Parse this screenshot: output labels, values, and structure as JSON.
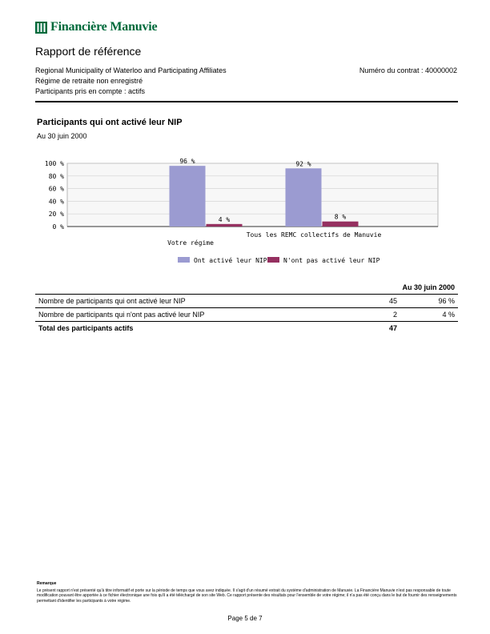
{
  "header": {
    "brand": "Financière Manuvie",
    "report_title": "Rapport de référence",
    "organization": "Regional Municipality of Waterloo and Participating Affiliates",
    "plan_type": "Régime de retraite non enregistré",
    "participants_scope": "Participants pris en compte : actifs",
    "contract_label": "Numéro du contrat : 40000002"
  },
  "section": {
    "title": "Participants qui ont activé leur NIP",
    "as_of": "Au 30 juin 2000"
  },
  "chart_data": {
    "type": "bar",
    "categories": [
      "Votre régime",
      "Tous les REMC collectifs de Manuvie"
    ],
    "series": [
      {
        "name": "Ont activé leur NIP",
        "values": [
          96,
          92
        ],
        "labels": [
          "96 %",
          "92 %"
        ],
        "color": "#9b9bd1"
      },
      {
        "name": "N'ont pas activé leur NIP",
        "values": [
          4,
          8
        ],
        "labels": [
          "4 %",
          "8 %"
        ],
        "color": "#953060"
      }
    ],
    "ylim": [
      0,
      100
    ],
    "yticks": [
      0,
      20,
      40,
      60,
      80,
      100
    ],
    "ytick_labels": [
      "0 %",
      "20 %",
      "40 %",
      "60 %",
      "80 %",
      "100 %"
    ],
    "grid": true,
    "legend_position": "bottom"
  },
  "table": {
    "header_period": "Au 30 juin 2000",
    "rows": [
      {
        "label": "Nombre de participants qui ont activé leur NIP",
        "count": "45",
        "percent": "96 %"
      },
      {
        "label": "Nombre de participants qui n'ont pas activé leur NIP",
        "count": "2",
        "percent": "4 %"
      }
    ],
    "total": {
      "label": "Total des participants actifs",
      "count": "47"
    }
  },
  "footer": {
    "note_title": "Remarque",
    "note_text": "Le présent rapport n'est présenté qu'à titre informatif et porte sur la période de temps que vous avez indiquée. Il s'agit d'un résumé extrait du système d'administration de Manuvie. La Financière Manuvie n'est pas responsable de toute modification pouvant être apportée à ce fichier électronique une fois qu'il a été téléchargé de son site Web. Ce rapport présente des résultats pour l'ensemble de votre régime; il n'a pas été conçu dans le but de fournir des renseignements permettant d'identifier les participants à votre régime.",
    "page_label": "Page 5 de 7"
  },
  "colors": {
    "brand": "#006a3b"
  }
}
